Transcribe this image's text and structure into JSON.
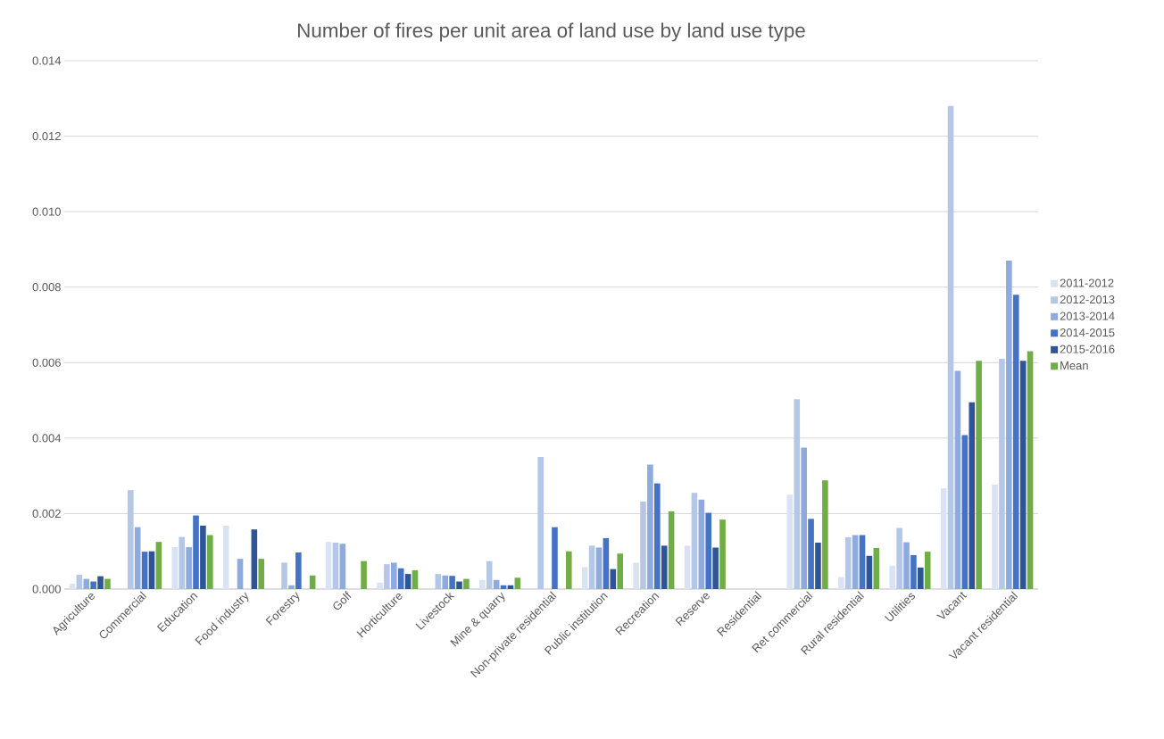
{
  "chart_data": {
    "type": "bar",
    "title": "Number of fires per unit area of land use by land use type",
    "categories": [
      "Agriculture",
      "Commercial",
      "Education",
      "Food industry",
      "Forestry",
      "Golf",
      "Horticulture",
      "Livestock",
      "Mine & quarry",
      "Non-private residential",
      "Public institution",
      "Recreation",
      "Reserve",
      "Residential",
      "Ret commercial",
      "Rural residential",
      "Utilities",
      "Vacant",
      "Vacant residential"
    ],
    "series": [
      {
        "name": "2011-2012",
        "color": "#dae3f3",
        "values": [
          0.00014,
          0,
          0.00111,
          0.00168,
          0,
          0.00125,
          0.00017,
          0,
          0.00024,
          0,
          0.00058,
          0.0007,
          0.00115,
          0,
          0.0025,
          0.00032,
          0.00062,
          0.00267,
          0.00277
        ]
      },
      {
        "name": "2012-2013",
        "color": "#b4c7e7",
        "values": [
          0.00038,
          0.00262,
          0.00138,
          0,
          0.0007,
          0.00123,
          0.00066,
          0.0004,
          0.00074,
          0.0035,
          0.00115,
          0.00232,
          0.00255,
          0,
          0.00503,
          0.00137,
          0.00162,
          0.0128,
          0.0061
        ]
      },
      {
        "name": "2013-2014",
        "color": "#8faadc",
        "values": [
          0.00027,
          0.00164,
          0.00111,
          0.0008,
          0.0001,
          0.0012,
          0.0007,
          0.00036,
          0.00024,
          0,
          0.0011,
          0.0033,
          0.00237,
          0,
          0.00375,
          0.00143,
          0.00124,
          0.00578,
          0.0087
        ]
      },
      {
        "name": "2014-2015",
        "color": "#4472c4",
        "values": [
          0.0002,
          0.00099,
          0.00195,
          0,
          0.00097,
          0,
          0.00055,
          0.00035,
          0.0001,
          0.00164,
          0.00135,
          0.0028,
          0.00202,
          0,
          0.00186,
          0.00143,
          0.0009,
          0.00408,
          0.0078
        ]
      },
      {
        "name": "2015-2016",
        "color": "#2f5597",
        "values": [
          0.00034,
          0.001,
          0.00168,
          0.00158,
          0,
          0,
          0.0004,
          0.0002,
          0.0001,
          0,
          0.00053,
          0.00115,
          0.0011,
          0,
          0.00123,
          0.00088,
          0.00057,
          0.00495,
          0.00605
        ]
      },
      {
        "name": "Mean",
        "color": "#70ad47",
        "values": [
          0.00027,
          0.00125,
          0.00143,
          0.0008,
          0.00036,
          0.00074,
          0.0005,
          0.00027,
          0.0003,
          0.001,
          0.00094,
          0.00206,
          0.00184,
          0,
          0.00288,
          0.00109,
          0.00099,
          0.00605,
          0.0063
        ]
      }
    ],
    "ylim": [
      0,
      0.014
    ],
    "yticks": [
      {
        "value": 0,
        "label": "0.000"
      },
      {
        "value": 0.002,
        "label": "0.002"
      },
      {
        "value": 0.004,
        "label": "0.004"
      },
      {
        "value": 0.006,
        "label": "0.006"
      },
      {
        "value": 0.008,
        "label": "0.008"
      },
      {
        "value": 0.01,
        "label": "0.010"
      },
      {
        "value": 0.012,
        "label": "0.012"
      },
      {
        "value": 0.014,
        "label": "0.014"
      }
    ],
    "grid": "y",
    "legend": "right"
  }
}
